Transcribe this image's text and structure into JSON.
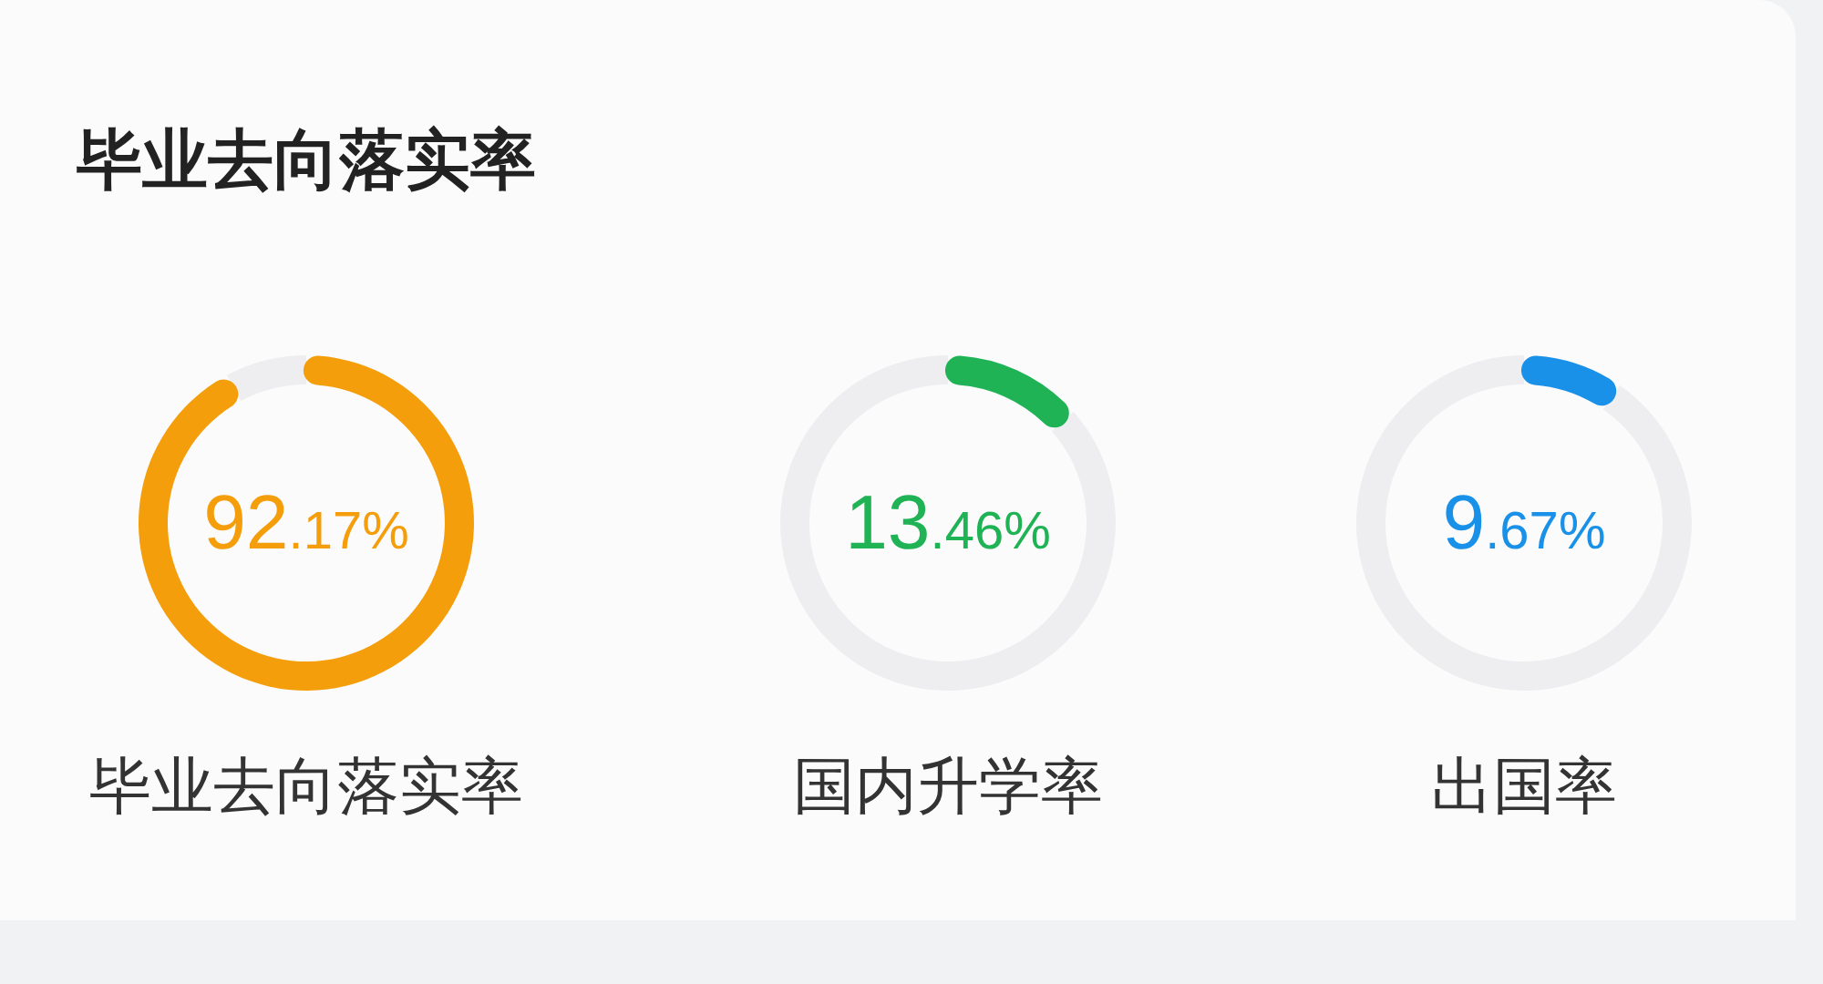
{
  "chart_data": [
    {
      "type": "other",
      "title": "毕业去向落实率"
    },
    {
      "type": "donut",
      "title": "毕业去向落实率",
      "categories": [
        null,
        null
      ],
      "values": [
        92.17,
        7.83
      ],
      "colors": [
        "#f59e0b",
        "#eeeef0"
      ],
      "value_labels": [
        "92.17%",
        null
      ]
    },
    {
      "type": "donut",
      "title": "国内升学率",
      "categories": [
        null,
        null
      ],
      "values": [
        13.46,
        86.54
      ],
      "colors": [
        "#1fb356",
        "#eeeef0"
      ],
      "value_labels": [
        "13.46%",
        null
      ]
    },
    {
      "type": "donut",
      "title": "出国率",
      "categories": [
        null,
        null
      ],
      "values": [
        9.67,
        90.33
      ],
      "colors": [
        "#1a91e8",
        "#eeeef0"
      ],
      "value_labels": [
        "9.67%",
        null
      ]
    }
  ]
}
